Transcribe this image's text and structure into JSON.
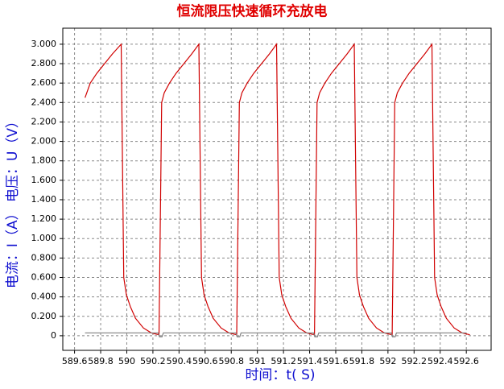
{
  "chart_data": {
    "type": "line",
    "title": "恒流限压快速循环充放电",
    "x_label": "时间：t( S)",
    "y_label": "电流：I（A） 电压：U（V）",
    "xlim": [
      589.51,
      592.79
    ],
    "xticks": [
      589.6,
      589.8,
      590,
      590.2,
      590.4,
      590.6,
      590.8,
      591,
      591.2,
      591.4,
      591.6,
      591.8,
      592,
      592.2,
      592.4,
      592.6
    ],
    "ylim": [
      -0.15,
      3.165
    ],
    "yticks": [
      0,
      {
        "value": 0.2,
        "label": "0.200"
      },
      {
        "value": 0.4,
        "label": "0.400"
      },
      {
        "value": 0.6,
        "label": "0.600"
      },
      {
        "value": 0.8,
        "label": "0.800"
      },
      {
        "value": 1,
        "label": "1.000"
      },
      {
        "value": 1.2,
        "label": "1.200"
      },
      {
        "value": 1.4,
        "label": "1.400"
      },
      {
        "value": 1.6,
        "label": "1.600"
      },
      {
        "value": 1.8,
        "label": "1.800"
      },
      {
        "value": 2,
        "label": "2.000"
      },
      {
        "value": 2.2,
        "label": "2.200"
      },
      {
        "value": 2.4,
        "label": "2.400"
      },
      {
        "value": 2.6,
        "label": "2.600"
      },
      {
        "value": 2.8,
        "label": "2.800"
      },
      {
        "value": 3,
        "label": "3.000"
      }
    ],
    "grid": true,
    "series": [
      {
        "color": "#d00000",
        "x": [
          589.68,
          589.72,
          589.77,
          589.83,
          589.89,
          589.957,
          589.977,
          589.997,
          590.027,
          590.067,
          590.127,
          590.187,
          590.247,
          590.267,
          590.287,
          590.327,
          590.377,
          590.437,
          590.497,
          590.552,
          590.572,
          590.592,
          590.622,
          590.662,
          590.722,
          590.782,
          590.842,
          590.862,
          590.882,
          590.922,
          590.972,
          591.032,
          591.092,
          591.147,
          591.167,
          591.187,
          591.217,
          591.257,
          591.317,
          591.377,
          591.437,
          591.457,
          591.477,
          591.517,
          591.567,
          591.627,
          591.687,
          591.742,
          591.762,
          591.782,
          591.812,
          591.852,
          591.912,
          591.972,
          592.032,
          592.052,
          592.072,
          592.112,
          592.162,
          592.222,
          592.282,
          592.337,
          592.357,
          592.377,
          592.407,
          592.447,
          592.507,
          592.567,
          592.627
        ],
        "values": [
          2.45,
          2.6,
          2.7,
          2.8,
          2.9,
          3.0,
          0.6,
          0.42,
          0.3,
          0.18,
          0.08,
          0.03,
          0.01,
          2.4,
          2.5,
          2.6,
          2.7,
          2.8,
          2.9,
          3.0,
          0.6,
          0.42,
          0.3,
          0.18,
          0.08,
          0.03,
          0.01,
          2.4,
          2.5,
          2.6,
          2.7,
          2.8,
          2.9,
          3.0,
          0.6,
          0.42,
          0.3,
          0.18,
          0.08,
          0.03,
          0.01,
          2.4,
          2.5,
          2.6,
          2.7,
          2.8,
          2.9,
          3.0,
          0.6,
          0.42,
          0.3,
          0.18,
          0.08,
          0.03,
          0.01,
          2.4,
          2.5,
          2.6,
          2.7,
          2.8,
          2.9,
          3.0,
          0.6,
          0.42,
          0.3,
          0.18,
          0.08,
          0.03,
          0.01
        ]
      },
      {
        "color": "#808080",
        "x": [
          589.68,
          590.24,
          590.25,
          590.27,
          590.28,
          590.835,
          590.845,
          590.865,
          590.875,
          591.43,
          591.44,
          591.46,
          591.47,
          592.025,
          592.035,
          592.055,
          592.065,
          592.6
        ],
        "values": [
          0.03,
          0.03,
          -0.01,
          -0.01,
          0.03,
          0.03,
          -0.01,
          -0.01,
          0.03,
          0.03,
          -0.01,
          -0.01,
          0.03,
          0.03,
          -0.01,
          -0.01,
          0.03,
          0.03
        ]
      }
    ]
  }
}
